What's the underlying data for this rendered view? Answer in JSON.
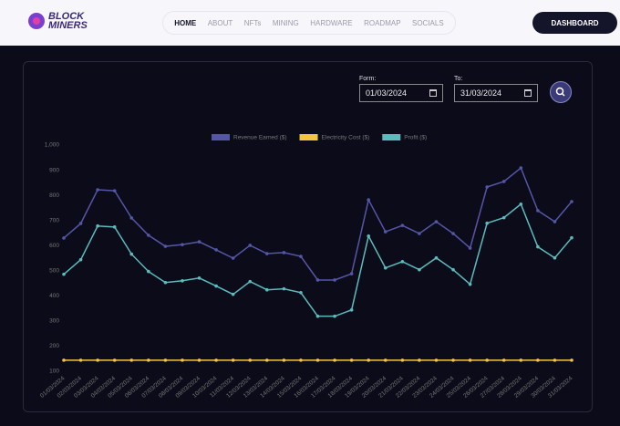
{
  "logo": {
    "line1": "BLOCK",
    "line2": "MINERS"
  },
  "nav": {
    "items": [
      "HOME",
      "ABOUT",
      "NFTs",
      "MINING",
      "HARDWARE",
      "ROADMAP",
      "SOCIALS"
    ]
  },
  "dashboard_button": "DASHBOARD",
  "filter": {
    "from_label": "Form:",
    "from_value": "01/03/2024",
    "to_label": "To:",
    "to_value": "31/03/2024"
  },
  "chart_data": {
    "type": "line",
    "categories": [
      "01/03/2024",
      "02/03/2024",
      "03/03/2024",
      "04/03/2024",
      "05/03/2024",
      "06/03/2024",
      "07/03/2024",
      "08/03/2024",
      "09/03/2024",
      "10/03/2024",
      "11/03/2024",
      "12/03/2024",
      "13/03/2024",
      "14/03/2024",
      "15/03/2024",
      "16/03/2024",
      "17/03/2024",
      "18/03/2024",
      "19/03/2024",
      "20/03/2024",
      "21/03/2024",
      "22/03/2024",
      "23/03/2024",
      "24/03/2024",
      "25/03/2024",
      "26/03/2024",
      "27/03/2024",
      "28/03/2024",
      "29/03/2024",
      "30/03/2024",
      "31/03/2024"
    ],
    "series": [
      {
        "name": "Revenue Earned ($)",
        "color": "#5656a8",
        "values": [
          630,
          688,
          822,
          818,
          710,
          641,
          597,
          604,
          615,
          583,
          550,
          601,
          568,
          572,
          557,
          463,
          463,
          488,
          782,
          655,
          680,
          648,
          695,
          648,
          590,
          833,
          855,
          909,
          739,
          695,
          775
        ]
      },
      {
        "name": "Electricity Cost ($)",
        "color": "#f5c542",
        "values": [
          144,
          144,
          144,
          144,
          144,
          144,
          144,
          144,
          144,
          144,
          144,
          144,
          144,
          144,
          144,
          144,
          144,
          144,
          144,
          144,
          144,
          144,
          144,
          144,
          144,
          144,
          144,
          144,
          144,
          144,
          144
        ]
      },
      {
        "name": "Profit ($)",
        "color": "#5cbcbc",
        "values": [
          486,
          544,
          678,
          674,
          566,
          497,
          453,
          460,
          471,
          439,
          406,
          457,
          424,
          428,
          413,
          319,
          319,
          344,
          638,
          511,
          536,
          504,
          551,
          504,
          446,
          689,
          711,
          765,
          595,
          551,
          631
        ]
      }
    ],
    "ylim": [
      100,
      1000
    ],
    "yticks": [
      100,
      200,
      300,
      400,
      500,
      600,
      700,
      800,
      900,
      {
        "value": 1000,
        "label": "1,000"
      }
    ],
    "legend": "top"
  }
}
